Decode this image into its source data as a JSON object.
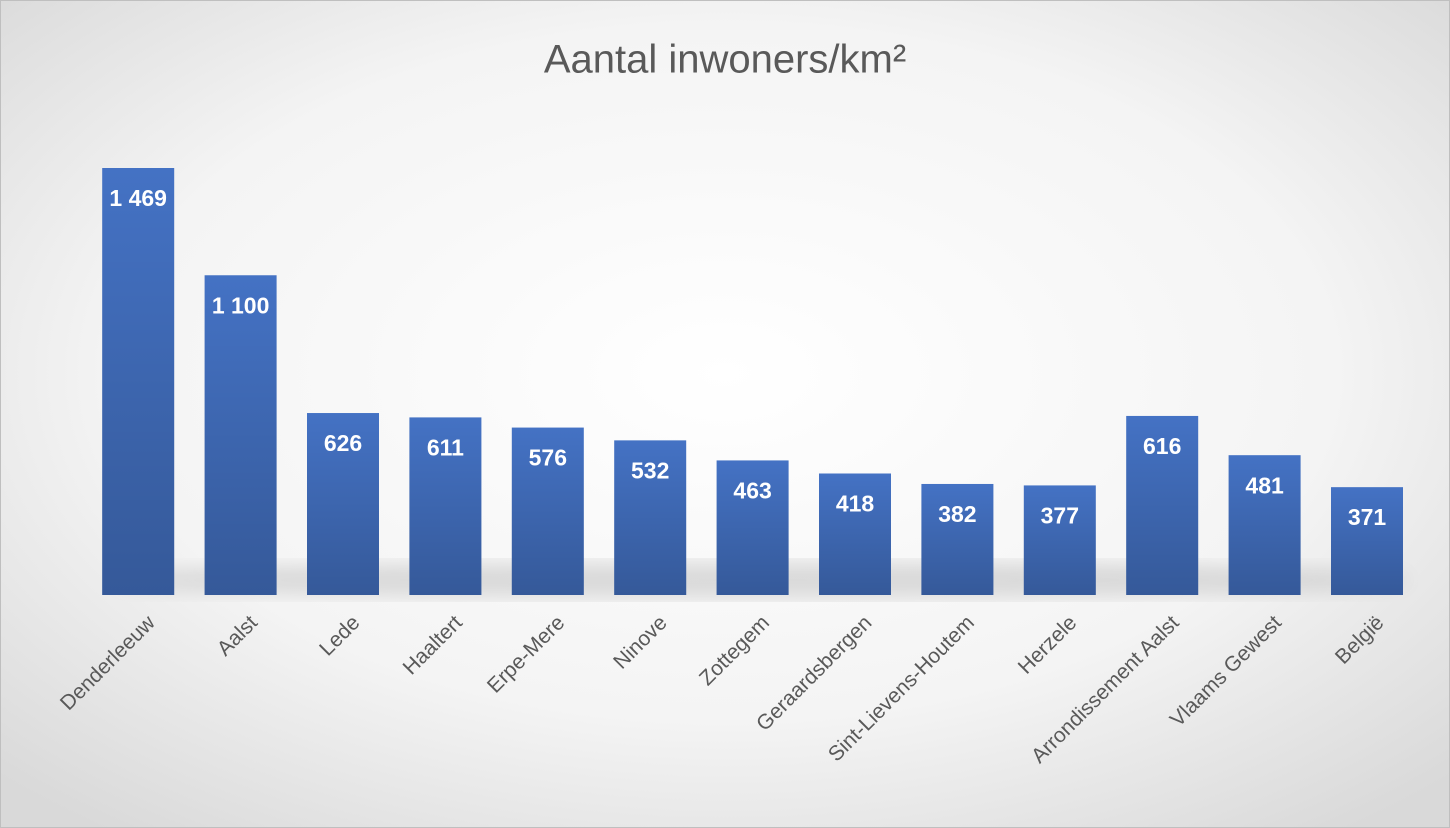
{
  "chart_data": {
    "type": "bar",
    "title": "Aantal inwoners/km²",
    "categories": [
      "Denderleeuw",
      "Aalst",
      "Lede",
      "Haaltert",
      "Erpe-Mere",
      "Ninove",
      "Zottegem",
      "Geraardsbergen",
      "Sint-Lievens-Houtem",
      "Herzele",
      "Arrondissement Aalst",
      "Vlaams Gewest",
      "België"
    ],
    "values": [
      1469,
      1100,
      626,
      611,
      576,
      532,
      463,
      418,
      382,
      377,
      616,
      481,
      371
    ],
    "value_labels": [
      "1 469",
      "1 100",
      "626",
      "611",
      "576",
      "532",
      "463",
      "418",
      "382",
      "377",
      "616",
      "481",
      "371"
    ],
    "color": "#4472c4"
  }
}
